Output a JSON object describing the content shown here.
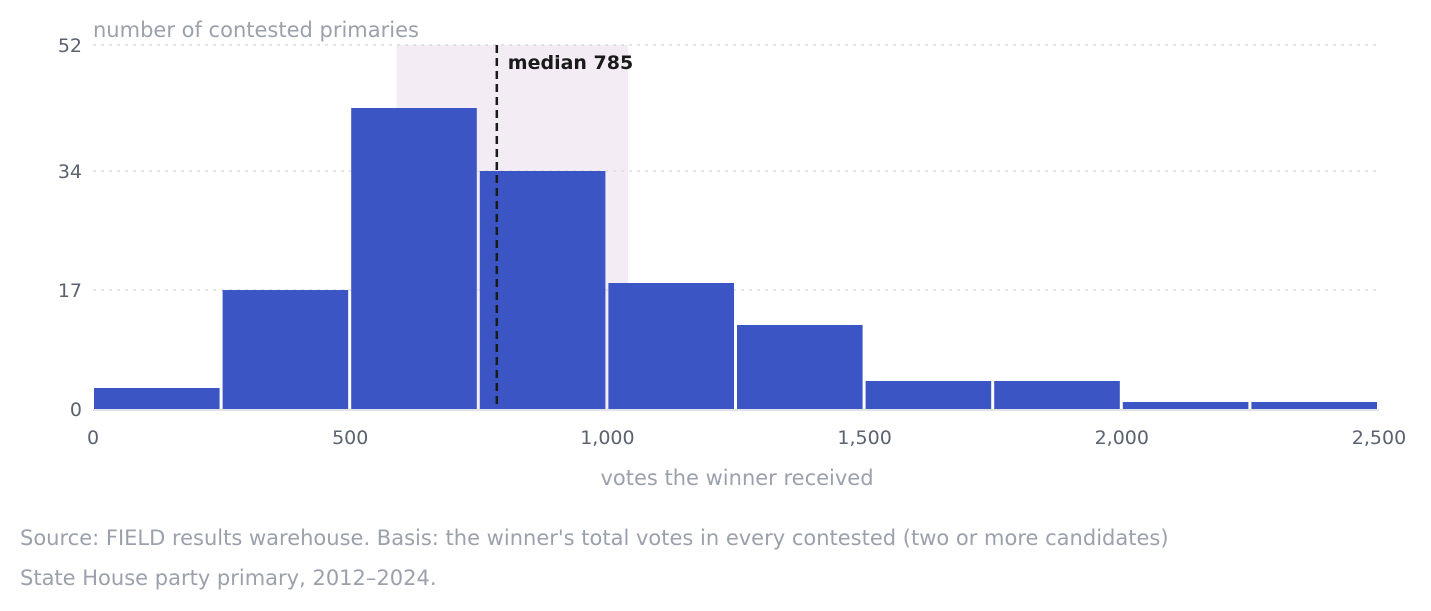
{
  "chart_data": {
    "type": "bar",
    "subtype": "histogram",
    "ylabel": "number of contested primaries",
    "xlabel": "votes the winner received",
    "xlim": [
      0,
      2500
    ],
    "ylim": [
      0,
      52
    ],
    "x_ticks": [
      {
        "value": 0,
        "label": "0"
      },
      {
        "value": 500,
        "label": "500"
      },
      {
        "value": 1000,
        "label": "1,000"
      },
      {
        "value": 1500,
        "label": "1,500"
      },
      {
        "value": 2000,
        "label": "2,000"
      },
      {
        "value": 2500,
        "label": "2,500"
      }
    ],
    "y_ticks": [
      {
        "value": 0,
        "label": "0"
      },
      {
        "value": 17,
        "label": "17"
      },
      {
        "value": 34,
        "label": "34"
      },
      {
        "value": 52,
        "label": "52"
      }
    ],
    "bin_width": 250,
    "bins": [
      {
        "x0": 0,
        "x1": 250,
        "count": 3
      },
      {
        "x0": 250,
        "x1": 500,
        "count": 17
      },
      {
        "x0": 500,
        "x1": 750,
        "count": 43
      },
      {
        "x0": 750,
        "x1": 1000,
        "count": 34
      },
      {
        "x0": 1000,
        "x1": 1250,
        "count": 18
      },
      {
        "x0": 1250,
        "x1": 1500,
        "count": 12
      },
      {
        "x0": 1500,
        "x1": 1750,
        "count": 4
      },
      {
        "x0": 1750,
        "x1": 2000,
        "count": 4
      },
      {
        "x0": 2000,
        "x1": 2250,
        "count": 1
      },
      {
        "x0": 2250,
        "x1": 2500,
        "count": 1
      }
    ],
    "median": {
      "value": 785,
      "label": "median 785"
    },
    "highlight_band": {
      "x0": 590,
      "x1": 1040
    },
    "grid": true,
    "colors": {
      "bar": "#3b55c4",
      "band": "#f3ecf5",
      "grid": "#d9dce2",
      "median": "#1a1a1a",
      "axis": "#dfe2e7"
    }
  },
  "source_note": "Source: FIELD results warehouse. Basis: the winner's total votes in every contested (two or more candidates) State House party primary, 2012–2024."
}
